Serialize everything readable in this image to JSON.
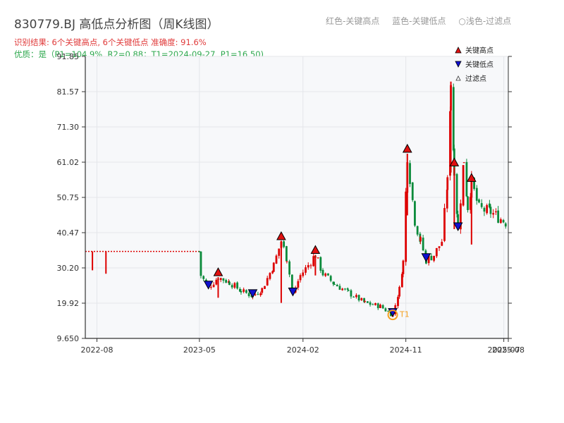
{
  "header": {
    "title": "830779.BJ 高低点分析图（周K线图）",
    "result_line": "识别结果: 6个关键高点, 6个关键低点  准确度: 91.6%",
    "quality_line": "优质：是（P1=104.9%, R2=0.88；T1=2024-09-27, P1=16.50)"
  },
  "top_legend": {
    "red": "红色-关键高点",
    "blue": "蓝色-关键低点",
    "light": "○浅色-过滤点"
  },
  "colors": {
    "up": "#dd0000",
    "down": "#0a8a3a",
    "high_marker": "#e01010",
    "low_marker": "#1010d0",
    "t1": "#f5a020",
    "plot_bg": "#f7f8fa",
    "grid": "#e4e6ea"
  },
  "chart_data": {
    "type": "candlestick",
    "title": "830779.BJ 高低点分析图（周K线图）",
    "y_ticks": [
      "9.650",
      "19.92",
      "30.20",
      "40.47",
      "50.75",
      "61.02",
      "71.30",
      "81.57",
      "91.85"
    ],
    "ylim": [
      9.65,
      91.85
    ],
    "x_ticks": [
      "2022-08",
      "2023-05",
      "2024-02",
      "2024-11",
      "2025-07",
      "2025-08"
    ],
    "xlim": [
      "2022-07-01",
      "2025-08-01"
    ],
    "grid": true,
    "legend": {
      "position": "top-right",
      "entries": [
        {
          "symbol": "triangle-up",
          "label": "关键高点"
        },
        {
          "symbol": "triangle-down",
          "label": "关键低点"
        },
        {
          "symbol": "triangle-up-hollow",
          "label": "过滤点"
        }
      ]
    },
    "reference_line": {
      "y": 35.0,
      "x_from": "2022-07-01",
      "x_to": "2023-05-01",
      "style": "dotted"
    },
    "annotation": {
      "label": "T1",
      "date": "2024-09-27",
      "value": 16.5
    },
    "key_highs": [
      {
        "date": "2023-06-20",
        "value": 27.5
      },
      {
        "date": "2023-12-05",
        "value": 38.0
      },
      {
        "date": "2024-03-05",
        "value": 34.0
      },
      {
        "date": "2024-11-05",
        "value": 63.5
      },
      {
        "date": "2025-03-10",
        "value": 59.5
      },
      {
        "date": "2025-04-25",
        "value": 55.0
      }
    ],
    "key_lows": [
      {
        "date": "2023-05-25",
        "value": 24.5
      },
      {
        "date": "2023-09-20",
        "value": 22.0
      },
      {
        "date": "2024-01-05",
        "value": 22.5
      },
      {
        "date": "2024-09-27",
        "value": 16.5
      },
      {
        "date": "2024-12-25",
        "value": 32.5
      },
      {
        "date": "2025-03-20",
        "value": 41.5
      }
    ],
    "path": [
      [
        "2022-07-20",
        35.0
      ],
      [
        "2022-08-05",
        29.0
      ],
      [
        "2022-08-25",
        35.0
      ],
      [
        "2023-05-01",
        35.0
      ],
      [
        "2023-05-05",
        28.0
      ],
      [
        "2023-05-25",
        24.5
      ],
      [
        "2023-06-20",
        27.5
      ],
      [
        "2023-07-20",
        26.0
      ],
      [
        "2023-08-20",
        23.5
      ],
      [
        "2023-09-20",
        22.0
      ],
      [
        "2023-10-15",
        24.0
      ],
      [
        "2023-11-15",
        31.0
      ],
      [
        "2023-12-05",
        38.0
      ],
      [
        "2023-12-20",
        33.0
      ],
      [
        "2024-01-05",
        22.5
      ],
      [
        "2024-01-25",
        28.0
      ],
      [
        "2024-02-15",
        31.0
      ],
      [
        "2024-03-05",
        34.0
      ],
      [
        "2024-03-25",
        28.5
      ],
      [
        "2024-04-25",
        25.5
      ],
      [
        "2024-06-01",
        23.0
      ],
      [
        "2024-07-15",
        20.0
      ],
      [
        "2024-08-25",
        19.0
      ],
      [
        "2024-09-27",
        16.5
      ],
      [
        "2024-10-15",
        24.0
      ],
      [
        "2024-10-25",
        32.0
      ],
      [
        "2024-11-05",
        63.5
      ],
      [
        "2024-11-25",
        44.0
      ],
      [
        "2024-12-10",
        38.0
      ],
      [
        "2024-12-25",
        32.5
      ],
      [
        "2025-01-15",
        34.0
      ],
      [
        "2025-02-05",
        38.0
      ],
      [
        "2025-02-20",
        55.0
      ],
      [
        "2025-03-01",
        84.5
      ],
      [
        "2025-03-10",
        59.5
      ],
      [
        "2025-03-20",
        41.5
      ],
      [
        "2025-04-05",
        62.0
      ],
      [
        "2025-04-15",
        48.0
      ],
      [
        "2025-04-25",
        55.0
      ],
      [
        "2025-05-15",
        47.5
      ],
      [
        "2025-06-15",
        46.5
      ],
      [
        "2025-07-05",
        45.0
      ],
      [
        "2025-07-25",
        43.5
      ],
      [
        "2025-08-01",
        44.5
      ]
    ]
  }
}
